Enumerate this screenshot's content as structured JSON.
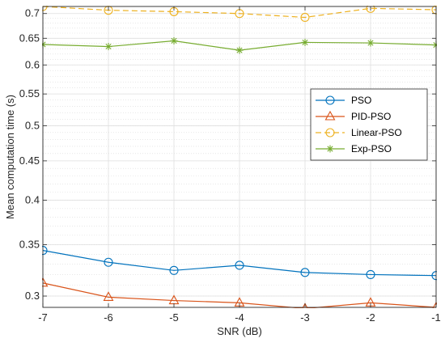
{
  "chart_data": {
    "type": "line",
    "xlabel": "SNR (dB)",
    "ylabel": "Mean computation time (s)",
    "x": [
      -7,
      -6,
      -5,
      -4,
      -3,
      -2,
      -1
    ],
    "xlim": [
      -7,
      -1
    ],
    "ylim": [
      0.29,
      0.715
    ],
    "scale_y": "log",
    "x_ticks": [
      "-7",
      "-6",
      "-5",
      "-4",
      "-3",
      "-2",
      "-1"
    ],
    "y_ticks": [
      0.3,
      0.35,
      0.4,
      0.45,
      0.5,
      0.55,
      0.6,
      0.65,
      0.7
    ],
    "y_tick_labels": [
      "0.3",
      "0.35",
      "0.4",
      "0.45",
      "0.5",
      "0.55",
      "0.6",
      "0.65",
      "0.7"
    ],
    "grid": true,
    "legend_position": "right",
    "series": [
      {
        "name": "PSO",
        "values": [
          0.344,
          0.332,
          0.324,
          0.329,
          0.322,
          0.32,
          0.319
        ],
        "color": "#0072BD",
        "marker": "circle",
        "dash": "solid"
      },
      {
        "name": "PID-PSO",
        "values": [
          0.312,
          0.299,
          0.296,
          0.294,
          0.289,
          0.294,
          0.29
        ],
        "color": "#D95319",
        "marker": "triangle",
        "dash": "solid"
      },
      {
        "name": "Linear-PSO",
        "values": [
          0.715,
          0.707,
          0.704,
          0.7,
          0.692,
          0.711,
          0.708
        ],
        "color": "#EDB120",
        "marker": "circle",
        "dash": "dashed"
      },
      {
        "name": "Exp-PSO",
        "values": [
          0.638,
          0.634,
          0.645,
          0.627,
          0.642,
          0.641,
          0.637
        ],
        "color": "#77AC30",
        "marker": "asterisk",
        "dash": "solid"
      }
    ]
  }
}
